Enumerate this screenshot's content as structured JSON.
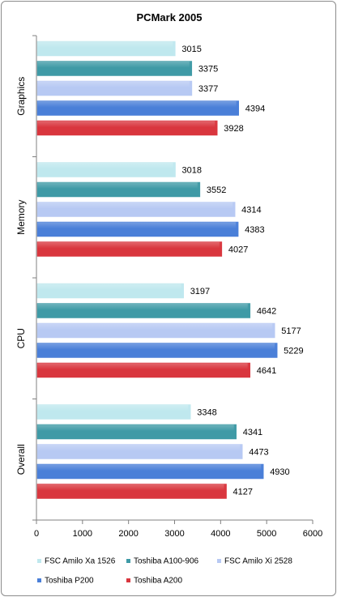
{
  "chart_data": {
    "type": "bar",
    "orientation": "horizontal",
    "title": "PCMark 2005",
    "categories": [
      "Graphics",
      "Memory",
      "CPU",
      "Overall"
    ],
    "series": [
      {
        "name": "FSC Amilo Xa 1526",
        "color": "#bfe8ee",
        "values": [
          3015,
          3018,
          3197,
          3348
        ]
      },
      {
        "name": "Toshiba A100-906",
        "color": "#3f9aa6",
        "values": [
          3375,
          3552,
          4642,
          4341
        ]
      },
      {
        "name": "FSC Amilo Xi 2528",
        "color": "#b7c9f3",
        "values": [
          3377,
          4314,
          5177,
          4473
        ]
      },
      {
        "name": "Toshiba P200",
        "color": "#4a7fd8",
        "values": [
          4394,
          4383,
          5229,
          4930
        ]
      },
      {
        "name": "Toshiba A200",
        "color": "#d9363e",
        "values": [
          3928,
          4027,
          4641,
          4127
        ]
      }
    ],
    "xlim": [
      0,
      6000
    ],
    "xticks": [
      "0",
      "1000",
      "2000",
      "3000",
      "4000",
      "5000",
      "6000"
    ],
    "grid": false,
    "legend_position": "bottom"
  }
}
